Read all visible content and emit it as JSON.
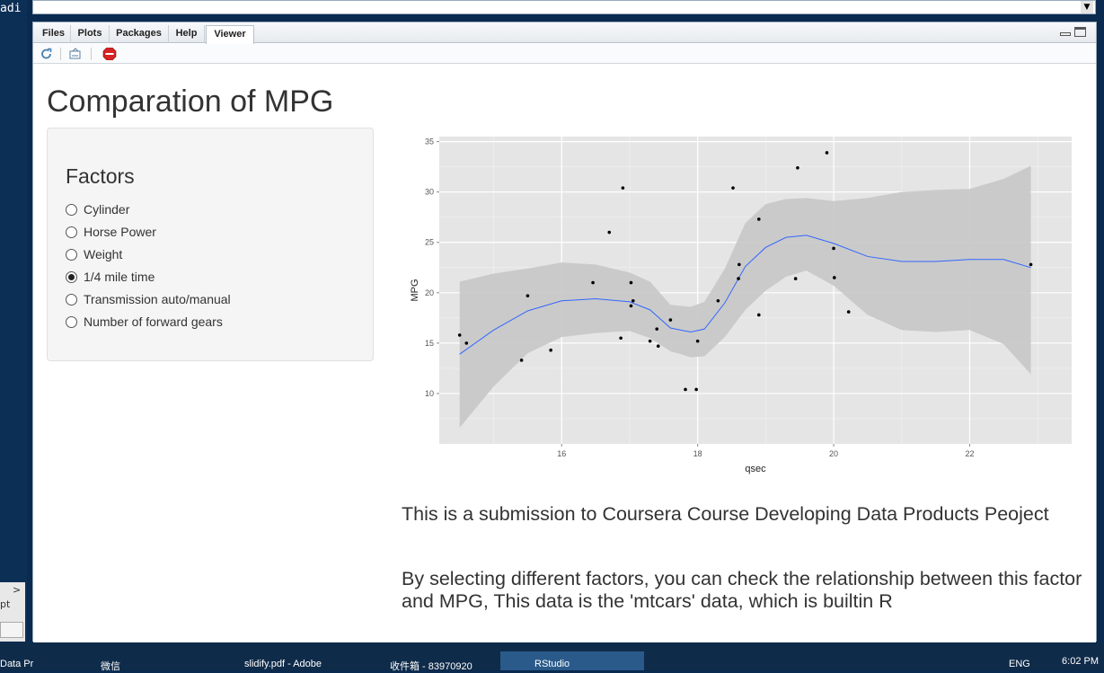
{
  "desktop": {
    "left_text": "adi",
    "left_bottom_text": "pt",
    "left_arrow": ">"
  },
  "tabs": [
    {
      "label": "Files"
    },
    {
      "label": "Plots"
    },
    {
      "label": "Packages"
    },
    {
      "label": "Help"
    },
    {
      "label": "Viewer",
      "active": true
    }
  ],
  "toolbar": {
    "icons": [
      "refresh-icon",
      "export-icon",
      "stop-icon"
    ]
  },
  "app": {
    "title": "Comparation of MPG",
    "sidebar": {
      "heading": "Factors",
      "options": [
        {
          "label": "Cylinder",
          "selected": false
        },
        {
          "label": "Horse Power",
          "selected": false
        },
        {
          "label": "Weight",
          "selected": false
        },
        {
          "label": "1/4 mile time",
          "selected": true
        },
        {
          "label": "Transmission auto/manual",
          "selected": false
        },
        {
          "label": "Number of forward gears",
          "selected": false
        }
      ]
    },
    "paragraph1": "This is a submission to Coursera Course Developing Data Products Peoject",
    "paragraph2": "By selecting different factors, you can check the relationship between this factor and MPG, This data is the 'mtcars' data, which is builtin R"
  },
  "chart_data": {
    "type": "scatter",
    "xlabel": "qsec",
    "ylabel": "MPG",
    "xlim": [
      14.2,
      23.5
    ],
    "ylim": [
      5,
      35.5
    ],
    "xticks": [
      16,
      18,
      20,
      22
    ],
    "yticks": [
      10,
      15,
      20,
      25,
      30,
      35
    ],
    "grid": true,
    "colors": {
      "panel": "#e5e5e5",
      "band": "#c6c6c6",
      "line": "#3366ff",
      "point": "#000000"
    },
    "points": [
      [
        14.5,
        15.8
      ],
      [
        14.6,
        15.0
      ],
      [
        15.41,
        13.3
      ],
      [
        15.5,
        19.7
      ],
      [
        15.84,
        14.3
      ],
      [
        16.46,
        21.0
      ],
      [
        16.7,
        26.0
      ],
      [
        16.87,
        15.5
      ],
      [
        16.9,
        30.4
      ],
      [
        17.02,
        21.0
      ],
      [
        17.02,
        18.7
      ],
      [
        17.05,
        19.2
      ],
      [
        17.3,
        15.2
      ],
      [
        17.4,
        16.4
      ],
      [
        17.42,
        14.7
      ],
      [
        17.6,
        17.3
      ],
      [
        17.82,
        10.4
      ],
      [
        17.98,
        10.4
      ],
      [
        18.0,
        15.2
      ],
      [
        18.3,
        19.2
      ],
      [
        18.52,
        30.4
      ],
      [
        18.6,
        21.4
      ],
      [
        18.61,
        22.8
      ],
      [
        18.9,
        27.3
      ],
      [
        18.9,
        17.8
      ],
      [
        19.44,
        21.4
      ],
      [
        19.47,
        32.4
      ],
      [
        19.9,
        33.9
      ],
      [
        20.0,
        24.4
      ],
      [
        20.01,
        21.5
      ],
      [
        20.22,
        18.1
      ],
      [
        22.9,
        22.8
      ]
    ],
    "smooth": [
      [
        14.5,
        13.9
      ],
      [
        15.0,
        16.3
      ],
      [
        15.5,
        18.2
      ],
      [
        16.0,
        19.2
      ],
      [
        16.5,
        19.4
      ],
      [
        17.0,
        19.1
      ],
      [
        17.3,
        18.3
      ],
      [
        17.6,
        16.5
      ],
      [
        17.9,
        16.1
      ],
      [
        18.1,
        16.4
      ],
      [
        18.4,
        19.0
      ],
      [
        18.7,
        22.6
      ],
      [
        19.0,
        24.5
      ],
      [
        19.3,
        25.5
      ],
      [
        19.6,
        25.7
      ],
      [
        20.0,
        24.9
      ],
      [
        20.5,
        23.6
      ],
      [
        21.0,
        23.1
      ],
      [
        21.5,
        23.1
      ],
      [
        22.0,
        23.3
      ],
      [
        22.5,
        23.3
      ],
      [
        22.9,
        22.5
      ]
    ],
    "band_upper": [
      [
        14.5,
        21.1
      ],
      [
        15.0,
        21.9
      ],
      [
        15.5,
        22.4
      ],
      [
        16.0,
        23.0
      ],
      [
        16.5,
        22.8
      ],
      [
        17.0,
        22.0
      ],
      [
        17.3,
        21.1
      ],
      [
        17.6,
        18.8
      ],
      [
        17.9,
        18.6
      ],
      [
        18.1,
        19.1
      ],
      [
        18.4,
        22.4
      ],
      [
        18.7,
        26.9
      ],
      [
        19.0,
        28.8
      ],
      [
        19.3,
        29.3
      ],
      [
        19.6,
        29.4
      ],
      [
        20.0,
        29.1
      ],
      [
        20.5,
        29.4
      ],
      [
        21.0,
        30.0
      ],
      [
        21.5,
        30.2
      ],
      [
        22.0,
        30.3
      ],
      [
        22.5,
        31.3
      ],
      [
        22.9,
        32.6
      ]
    ],
    "band_lower": [
      [
        14.5,
        6.6
      ],
      [
        15.0,
        10.7
      ],
      [
        15.5,
        14.0
      ],
      [
        16.0,
        15.6
      ],
      [
        16.5,
        16.0
      ],
      [
        17.0,
        16.2
      ],
      [
        17.3,
        15.5
      ],
      [
        17.6,
        14.2
      ],
      [
        17.9,
        13.6
      ],
      [
        18.1,
        13.7
      ],
      [
        18.4,
        15.6
      ],
      [
        18.7,
        18.3
      ],
      [
        19.0,
        20.2
      ],
      [
        19.3,
        21.6
      ],
      [
        19.6,
        22.2
      ],
      [
        20.0,
        20.7
      ],
      [
        20.5,
        17.8
      ],
      [
        21.0,
        16.3
      ],
      [
        21.5,
        16.1
      ],
      [
        22.0,
        16.3
      ],
      [
        22.5,
        14.9
      ],
      [
        22.9,
        11.9
      ]
    ]
  },
  "taskbar": {
    "items": [
      {
        "label": "Data Pr"
      },
      {
        "label": "微信"
      },
      {
        "label": "slidify.pdf - Adobe"
      },
      {
        "label": "收件箱 - 83970920"
      },
      {
        "label": "RStudio",
        "active": true
      }
    ],
    "lang": "ENG",
    "clock": "6:02 PM"
  }
}
